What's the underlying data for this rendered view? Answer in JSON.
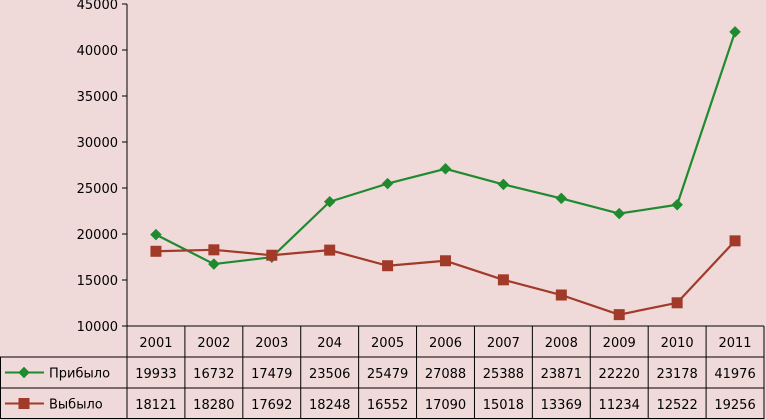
{
  "chart_data": {
    "type": "line",
    "categories": [
      "2001",
      "2002",
      "2003",
      "204",
      "2005",
      "2006",
      "2007",
      "2008",
      "2009",
      "2010",
      "2011"
    ],
    "series": [
      {
        "name": "Прибыло",
        "values": [
          19933,
          16732,
          17479,
          23506,
          25479,
          27088,
          25388,
          23871,
          22220,
          23178,
          41976
        ],
        "value_labels": [
          "19933",
          "16732",
          "17479",
          "23506",
          "25479",
          "27088",
          "25388",
          "23871",
          "22220",
          "23178",
          "41976"
        ],
        "color": "#1f8a2e",
        "marker": "diamond"
      },
      {
        "name": "Выбыло",
        "values": [
          18121,
          18280,
          17692,
          18248,
          16552,
          17090,
          15018,
          13369,
          11234,
          12522,
          19256
        ],
        "value_labels": [
          "18121",
          "18280",
          "17692",
          "18248",
          "16552",
          "17090",
          "15018",
          "13369",
          "11234",
          "12522",
          "19256"
        ],
        "color": "#a23a2a",
        "marker": "square"
      }
    ],
    "ylim": [
      10000,
      45000
    ],
    "yticks": [
      "10000",
      "15000",
      "20000",
      "25000",
      "30000",
      "35000",
      "40000",
      "45000"
    ],
    "grid": false,
    "legend": "data-table",
    "title": "",
    "xlabel": "",
    "ylabel": ""
  }
}
